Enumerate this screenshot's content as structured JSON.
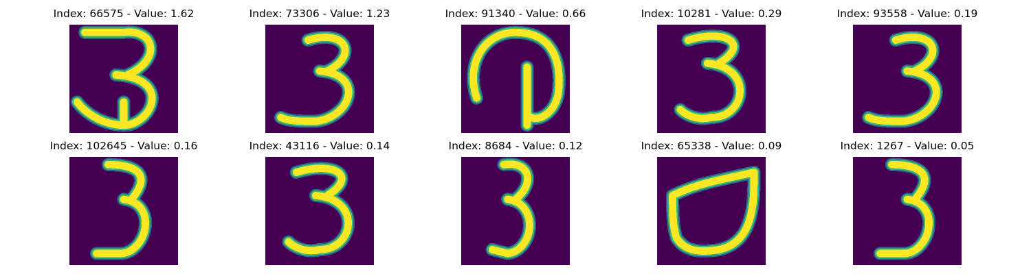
{
  "colors": {
    "background": "#440154",
    "low": "#31688e",
    "mid": "#35b779",
    "high": "#fde725"
  },
  "images": [
    {
      "title": "Index: 66575 - Value: 1.62",
      "glyph": "three_wide"
    },
    {
      "title": "Index: 73306 - Value: 1.23",
      "glyph": "three"
    },
    {
      "title": "Index: 91340 - Value: 0.66",
      "glyph": "loop"
    },
    {
      "title": "Index: 10281 - Value: 0.29",
      "glyph": "three_bold"
    },
    {
      "title": "Index: 93558 - Value: 0.19",
      "glyph": "three"
    },
    {
      "title": "Index: 102645 - Value: 0.16",
      "glyph": "three_narrow"
    },
    {
      "title": "Index: 43116 - Value: 0.14",
      "glyph": "three_bold"
    },
    {
      "title": "Index: 8684 - Value: 0.12",
      "glyph": "three_small"
    },
    {
      "title": "Index: 65338 - Value: 0.09",
      "glyph": "bowl"
    },
    {
      "title": "Index: 1267 - Value: 0.05",
      "glyph": "three_narrow"
    }
  ]
}
